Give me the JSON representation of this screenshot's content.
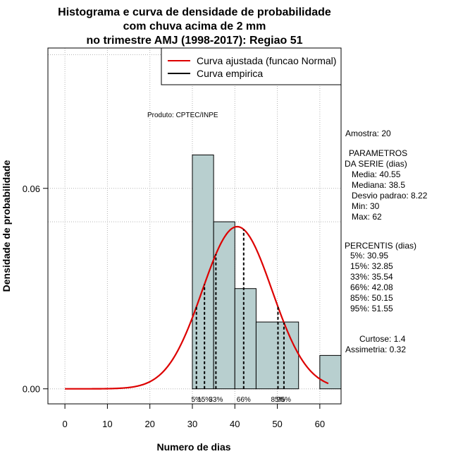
{
  "chart_data": {
    "type": "histogram",
    "title": [
      "Histograma e curva de densidade de probabilidade",
      "com chuva acima de 2 mm",
      "no trimestre AMJ (1998-2017): Regiao 51"
    ],
    "xlabel": "Numero de dias",
    "ylabel": "Densidade de probabilidade",
    "xlim": [
      -4,
      65
    ],
    "ylim": [
      -0.0045,
      0.102
    ],
    "x_ticks": [
      0,
      10,
      20,
      30,
      40,
      50,
      60
    ],
    "y_ticks": [
      0.0,
      0.06
    ],
    "y_tick_labels": [
      "0.00",
      "0.06"
    ],
    "grid_x": [
      0,
      10,
      20,
      30,
      40,
      50,
      60
    ],
    "grid_y": [
      0.0,
      0.06,
      0.05,
      0.1
    ],
    "bars": [
      {
        "start": 30,
        "end": 35,
        "density": 0.07
      },
      {
        "start": 35,
        "end": 40,
        "density": 0.05
      },
      {
        "start": 40,
        "end": 45,
        "density": 0.03
      },
      {
        "start": 45,
        "end": 55,
        "density": 0.02
      },
      {
        "start": 60,
        "end": 65,
        "density": 0.01
      }
    ],
    "bar_color": "#b8cfcf",
    "normal_curve": {
      "mean": 40.55,
      "sd": 8.22,
      "x_range": [
        0,
        62
      ],
      "color": "#dd0000"
    },
    "legend": [
      {
        "label": "Curva ajustada (funcao Normal)",
        "color": "#dd0000"
      },
      {
        "label": "Curva empirica",
        "color": "#000000"
      }
    ],
    "percentile_lines": [
      {
        "label": "5%",
        "x": 30.95
      },
      {
        "label": "15%",
        "x": 32.85
      },
      {
        "label": "33%",
        "x": 35.54
      },
      {
        "label": "66%",
        "x": 42.08
      },
      {
        "label": "85%",
        "x": 50.15
      },
      {
        "label": "95%",
        "x": 51.55
      }
    ],
    "product_label": "Produto: CPTEC/INPE",
    "amostra": "Amostra: 20",
    "parametros_title": [
      "PARAMETROS",
      "DA SERIE (dias)"
    ],
    "parametros": [
      "Media: 40.55",
      "Mediana: 38.5",
      "Desvio padrao: 8.22",
      "Min: 30",
      "Max: 62"
    ],
    "percentis_title": "PERCENTIS (dias)",
    "percentis": [
      "5%: 30.95",
      "15%: 32.85",
      "33%: 35.54",
      "66%: 42.08",
      "85%: 50.15",
      "95%: 51.55"
    ],
    "curtose": "Curtose: 1.4",
    "assimetria": "Assimetria: 0.32"
  }
}
